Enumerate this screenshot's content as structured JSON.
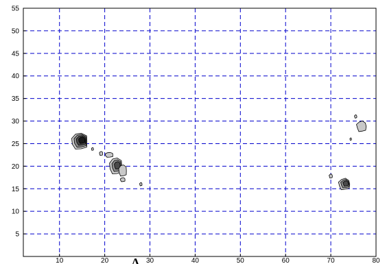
{
  "chart_data": {
    "type": "contour",
    "title": "",
    "xlabel": "",
    "ylabel": "",
    "xlim": [
      2,
      80
    ],
    "ylim": [
      0,
      55
    ],
    "grid": true,
    "grid_color": "#0000cc",
    "grid_style": "dashed",
    "x_ticks": [
      10,
      20,
      30,
      40,
      50,
      60,
      70,
      80
    ],
    "y_ticks": [
      5,
      10,
      15,
      20,
      25,
      30,
      35,
      40,
      45,
      50,
      55
    ],
    "annotation": "Λ",
    "annotation_x": 26.8,
    "fill_levels": [
      "#c8c8c8",
      "#8c8c8c",
      "#4a4a4a",
      "#1a1a1a"
    ],
    "blobs": [
      {
        "x": 14.5,
        "y": 25.5,
        "rx": 2.0,
        "ry": 2.0,
        "levels": 4
      },
      {
        "x": 22.5,
        "y": 20.0,
        "rx": 1.6,
        "ry": 2.0,
        "levels": 3
      },
      {
        "x": 24.0,
        "y": 19.0,
        "rx": 1.0,
        "ry": 1.4,
        "levels": 1
      },
      {
        "x": 21.0,
        "y": 22.5,
        "rx": 1.0,
        "ry": 0.6,
        "levels": 1
      },
      {
        "x": 19.2,
        "y": 22.8,
        "rx": 0.4,
        "ry": 0.5,
        "levels": 1
      },
      {
        "x": 24.0,
        "y": 17.0,
        "rx": 0.6,
        "ry": 0.5,
        "levels": 1
      },
      {
        "x": 28.0,
        "y": 16.0,
        "rx": 0.3,
        "ry": 0.4,
        "levels": 1
      },
      {
        "x": 17.3,
        "y": 23.8,
        "rx": 0.25,
        "ry": 0.35,
        "levels": 1
      },
      {
        "x": 73.0,
        "y": 16.0,
        "rx": 1.4,
        "ry": 1.4,
        "levels": 3
      },
      {
        "x": 76.8,
        "y": 28.8,
        "rx": 1.2,
        "ry": 1.3,
        "levels": 1
      },
      {
        "x": 75.5,
        "y": 31.0,
        "rx": 0.3,
        "ry": 0.4,
        "levels": 1
      },
      {
        "x": 74.4,
        "y": 26.0,
        "rx": 0.2,
        "ry": 0.3,
        "levels": 1
      },
      {
        "x": 70.0,
        "y": 17.8,
        "rx": 0.4,
        "ry": 0.5,
        "levels": 1
      }
    ]
  }
}
